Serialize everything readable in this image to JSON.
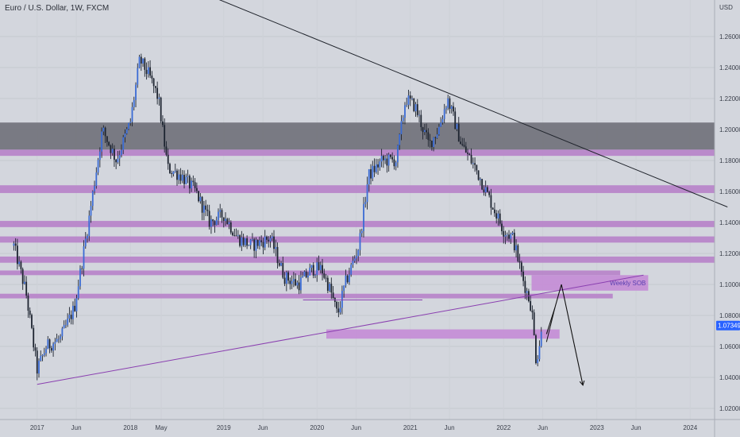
{
  "chart_data": {
    "type": "candlestick",
    "title": "Euro / U.S. Dollar, 1W, FXCM",
    "currency_label": "USD",
    "y_ticks": [
      "1.26000",
      "1.24000",
      "1.22000",
      "1.20000",
      "1.18000",
      "1.16000",
      "1.14000",
      "1.12000",
      "1.10000",
      "1.08000",
      "1.06000",
      "1.04000",
      "1.02000"
    ],
    "ylim": [
      1.012,
      1.27
    ],
    "x_labels": [
      {
        "t": 2017.0,
        "label": "2017"
      },
      {
        "t": 2017.42,
        "label": "Jun"
      },
      {
        "t": 2018.0,
        "label": "2018"
      },
      {
        "t": 2018.33,
        "label": "May"
      },
      {
        "t": 2019.0,
        "label": "2019"
      },
      {
        "t": 2019.42,
        "label": "Jun"
      },
      {
        "t": 2020.0,
        "label": "2020"
      },
      {
        "t": 2020.42,
        "label": "Jun"
      },
      {
        "t": 2021.0,
        "label": "2021"
      },
      {
        "t": 2021.42,
        "label": "Jun"
      },
      {
        "t": 2022.0,
        "label": "2022"
      },
      {
        "t": 2022.42,
        "label": "Jun"
      },
      {
        "t": 2023.0,
        "label": "2023"
      },
      {
        "t": 2023.42,
        "label": "Jun"
      },
      {
        "t": 2024.0,
        "label": "2024"
      }
    ],
    "current_price": {
      "value": 1.07349,
      "label": "1.07349",
      "color": "#2962ff"
    },
    "price_path": [
      [
        2016.75,
        1.125
      ],
      [
        2016.88,
        1.095
      ],
      [
        2017.0,
        1.045
      ],
      [
        2017.1,
        1.06
      ],
      [
        2017.25,
        1.065
      ],
      [
        2017.4,
        1.085
      ],
      [
        2017.55,
        1.14
      ],
      [
        2017.7,
        1.2
      ],
      [
        2017.85,
        1.18
      ],
      [
        2018.0,
        1.205
      ],
      [
        2018.1,
        1.245
      ],
      [
        2018.2,
        1.235
      ],
      [
        2018.3,
        1.22
      ],
      [
        2018.4,
        1.175
      ],
      [
        2018.55,
        1.17
      ],
      [
        2018.7,
        1.16
      ],
      [
        2018.85,
        1.14
      ],
      [
        2019.0,
        1.145
      ],
      [
        2019.15,
        1.13
      ],
      [
        2019.3,
        1.125
      ],
      [
        2019.5,
        1.13
      ],
      [
        2019.65,
        1.105
      ],
      [
        2019.8,
        1.1
      ],
      [
        2019.95,
        1.11
      ],
      [
        2020.05,
        1.11
      ],
      [
        2020.15,
        1.095
      ],
      [
        2020.22,
        1.08
      ],
      [
        2020.3,
        1.1
      ],
      [
        2020.45,
        1.125
      ],
      [
        2020.55,
        1.17
      ],
      [
        2020.7,
        1.18
      ],
      [
        2020.85,
        1.18
      ],
      [
        2020.95,
        1.22
      ],
      [
        2021.05,
        1.215
      ],
      [
        2021.2,
        1.19
      ],
      [
        2021.3,
        1.2
      ],
      [
        2021.4,
        1.22
      ],
      [
        2021.55,
        1.19
      ],
      [
        2021.7,
        1.175
      ],
      [
        2021.85,
        1.155
      ],
      [
        2022.0,
        1.135
      ],
      [
        2022.1,
        1.13
      ],
      [
        2022.2,
        1.105
      ],
      [
        2022.3,
        1.085
      ],
      [
        2022.35,
        1.05
      ],
      [
        2022.42,
        1.07349
      ]
    ],
    "zones": [
      {
        "label": "",
        "y_top": 1.2045,
        "y_bottom": 1.187,
        "color": "#74757d",
        "t_end": 2024.5
      },
      {
        "label": "",
        "y_top": 1.187,
        "y_bottom": 1.183,
        "color": "#b782c9",
        "t_end": 2024.5
      },
      {
        "label": "",
        "y_top": 1.164,
        "y_bottom": 1.159,
        "color": "#b782c9",
        "t_end": 2024.5
      },
      {
        "label": "",
        "y_top": 1.141,
        "y_bottom": 1.137,
        "color": "#b782c9",
        "t_end": 2024.5
      },
      {
        "label": "",
        "y_top": 1.131,
        "y_bottom": 1.127,
        "color": "#b782c9",
        "t_end": 2024.5
      },
      {
        "label": "",
        "y_top": 1.118,
        "y_bottom": 1.114,
        "color": "#b782c9",
        "t_end": 2024.5
      },
      {
        "label": "",
        "y_top": 1.109,
        "y_bottom": 1.106,
        "color": "#b782c9",
        "t_end": 2023.25
      },
      {
        "label": "",
        "y_top": 1.094,
        "y_bottom": 1.091,
        "color": "#b782c9",
        "t_end": 2023.17
      },
      {
        "label": "Weekly SOB",
        "y_top": 1.106,
        "y_bottom": 1.096,
        "t_start": 2022.3,
        "t_end": 2023.55,
        "color": "#c48cd6"
      },
      {
        "label": "",
        "y_top": 1.071,
        "y_bottom": 1.065,
        "t_start": 2020.1,
        "t_end": 2022.6,
        "color": "#c48cd6"
      }
    ],
    "trendlines": [
      {
        "from": [
          2019.85,
          1.09
        ],
        "to": [
          2021.13,
          1.09
        ],
        "color": "#8a3fb0"
      },
      {
        "from": [
          2017.0,
          1.0355
        ],
        "to": [
          2023.5,
          1.106
        ],
        "color": "#8a3fb0"
      },
      {
        "from": [
          2018.7,
          1.29
        ],
        "to": [
          2024.4,
          1.15
        ],
        "color": "#1f232b"
      }
    ],
    "projection": [
      [
        2022.46,
        1.068
      ],
      [
        2022.55,
        1.085
      ],
      [
        2022.62,
        1.1
      ],
      [
        2022.85,
        1.035
      ]
    ]
  }
}
